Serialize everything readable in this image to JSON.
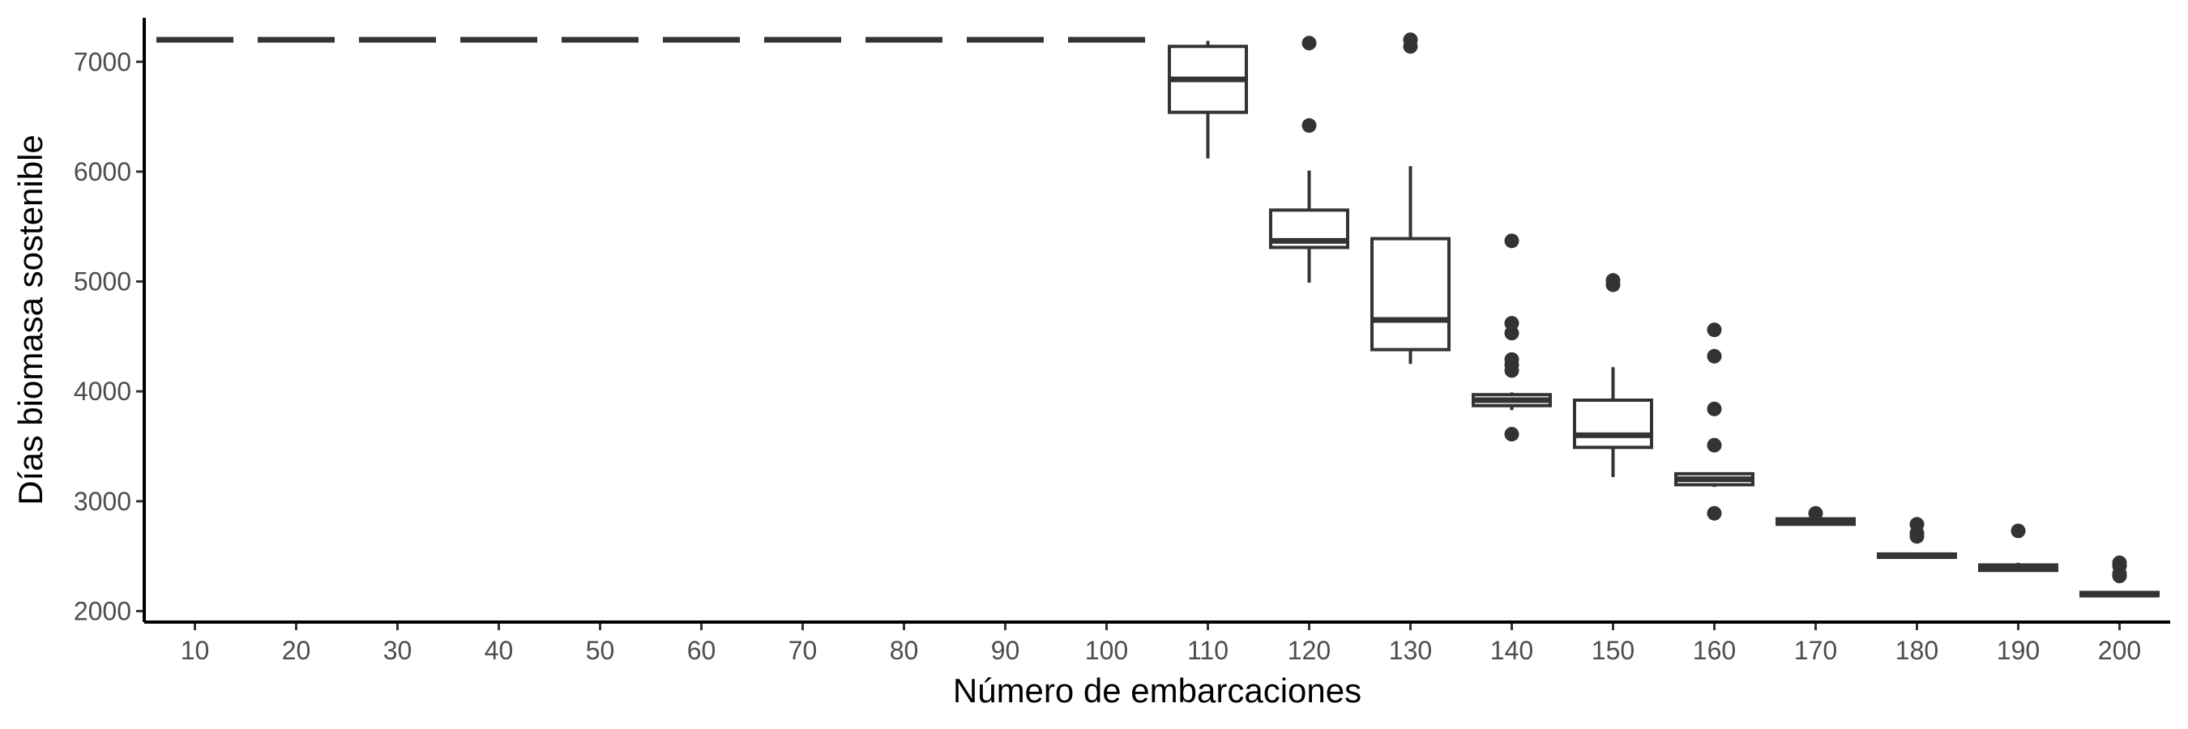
{
  "chart_data": {
    "type": "boxplot",
    "xlabel": "Número de embarcaciones",
    "ylabel": "Días biomasa sostenible",
    "ylim": [
      1900,
      7400
    ],
    "y_ticks": [
      2000,
      3000,
      4000,
      5000,
      6000,
      7000
    ],
    "grid": false,
    "legend": "none",
    "color": "#333333",
    "categories": [
      "10",
      "20",
      "30",
      "40",
      "50",
      "60",
      "70",
      "80",
      "90",
      "100",
      "110",
      "120",
      "130",
      "140",
      "150",
      "160",
      "170",
      "180",
      "190",
      "200"
    ],
    "boxes": [
      {
        "category": "10",
        "min": 7200,
        "q1": 7200,
        "median": 7200,
        "q3": 7200,
        "max": 7200,
        "outliers": []
      },
      {
        "category": "20",
        "min": 7200,
        "q1": 7200,
        "median": 7200,
        "q3": 7200,
        "max": 7200,
        "outliers": []
      },
      {
        "category": "30",
        "min": 7200,
        "q1": 7200,
        "median": 7200,
        "q3": 7200,
        "max": 7200,
        "outliers": []
      },
      {
        "category": "40",
        "min": 7200,
        "q1": 7200,
        "median": 7200,
        "q3": 7200,
        "max": 7200,
        "outliers": []
      },
      {
        "category": "50",
        "min": 7200,
        "q1": 7200,
        "median": 7200,
        "q3": 7200,
        "max": 7200,
        "outliers": []
      },
      {
        "category": "60",
        "min": 7200,
        "q1": 7200,
        "median": 7200,
        "q3": 7200,
        "max": 7200,
        "outliers": []
      },
      {
        "category": "70",
        "min": 7200,
        "q1": 7200,
        "median": 7200,
        "q3": 7200,
        "max": 7200,
        "outliers": []
      },
      {
        "category": "80",
        "min": 7200,
        "q1": 7200,
        "median": 7200,
        "q3": 7200,
        "max": 7200,
        "outliers": []
      },
      {
        "category": "90",
        "min": 7200,
        "q1": 7200,
        "median": 7200,
        "q3": 7200,
        "max": 7200,
        "outliers": []
      },
      {
        "category": "100",
        "min": 7200,
        "q1": 7200,
        "median": 7200,
        "q3": 7200,
        "max": 7200,
        "outliers": []
      },
      {
        "category": "110",
        "min": 6120,
        "q1": 6540,
        "median": 6840,
        "q3": 7140,
        "max": 7190,
        "outliers": []
      },
      {
        "category": "120",
        "min": 4990,
        "q1": 5310,
        "median": 5370,
        "q3": 5650,
        "max": 6010,
        "outliers": [
          6420,
          7170
        ]
      },
      {
        "category": "130",
        "min": 4250,
        "q1": 4380,
        "median": 4650,
        "q3": 5390,
        "max": 6050,
        "outliers": [
          7140,
          7200
        ]
      },
      {
        "category": "140",
        "min": 3830,
        "q1": 3870,
        "median": 3920,
        "q3": 3970,
        "max": 3990,
        "outliers": [
          3610,
          4190,
          4240,
          4290,
          4530,
          4620,
          5370
        ]
      },
      {
        "category": "150",
        "min": 3220,
        "q1": 3490,
        "median": 3600,
        "q3": 3920,
        "max": 4220,
        "outliers": [
          4970,
          5010
        ]
      },
      {
        "category": "160",
        "min": 3130,
        "q1": 3150,
        "median": 3200,
        "q3": 3250,
        "max": 3260,
        "outliers": [
          2890,
          3510,
          3840,
          4320,
          4560
        ]
      },
      {
        "category": "170",
        "min": 2790,
        "q1": 2790,
        "median": 2820,
        "q3": 2840,
        "max": 2850,
        "outliers": [
          2890
        ]
      },
      {
        "category": "180",
        "min": 2490,
        "q1": 2490,
        "median": 2500,
        "q3": 2520,
        "max": 2530,
        "outliers": [
          2680,
          2710,
          2790
        ]
      },
      {
        "category": "190",
        "min": 2370,
        "q1": 2370,
        "median": 2390,
        "q3": 2420,
        "max": 2440,
        "outliers": [
          2730
        ]
      },
      {
        "category": "200",
        "min": 2140,
        "q1": 2140,
        "median": 2150,
        "q3": 2170,
        "max": 2180,
        "outliers": [
          2320,
          2340,
          2410,
          2440
        ]
      }
    ]
  }
}
